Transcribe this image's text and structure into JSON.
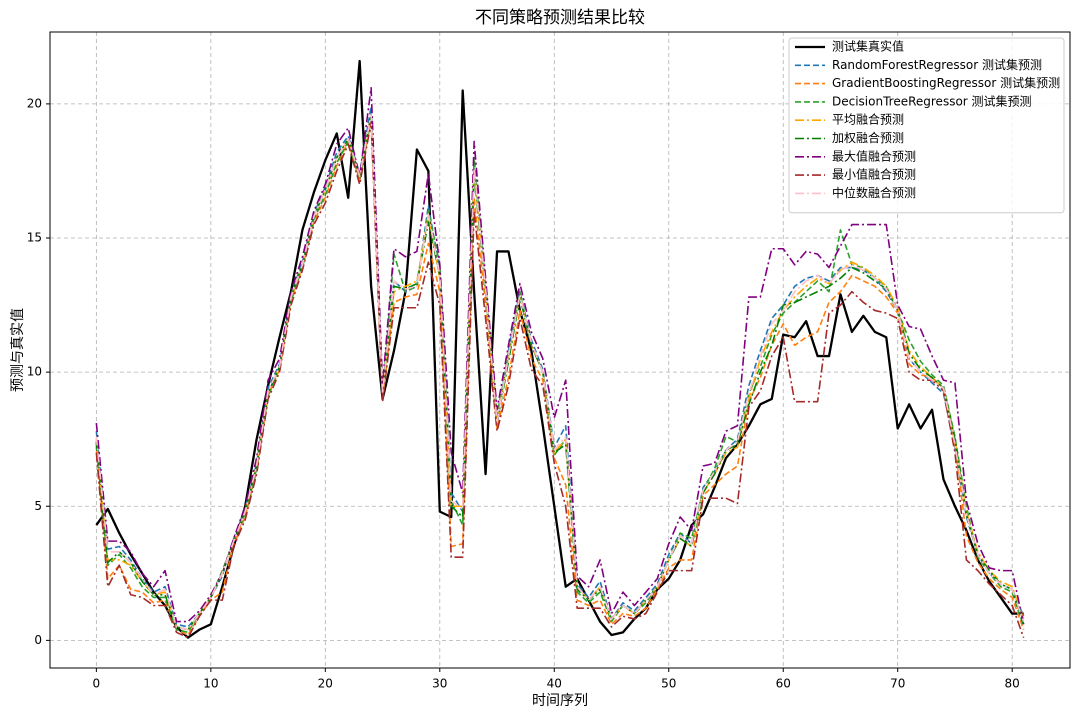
{
  "chart_data": {
    "type": "line",
    "title": "不同策略预测结果比较",
    "xlabel": "时间序列",
    "ylabel": "预测与真实值",
    "x": [
      0,
      1,
      2,
      3,
      4,
      5,
      6,
      7,
      8,
      9,
      10,
      11,
      12,
      13,
      14,
      15,
      16,
      17,
      18,
      19,
      20,
      21,
      22,
      23,
      24,
      25,
      26,
      27,
      28,
      29,
      30,
      31,
      32,
      33,
      34,
      35,
      36,
      37,
      38,
      39,
      40,
      41,
      42,
      43,
      44,
      45,
      46,
      47,
      48,
      49,
      50,
      51,
      52,
      53,
      54,
      55,
      56,
      57,
      58,
      59,
      60,
      61,
      62,
      63,
      64,
      65,
      66,
      67,
      68,
      69,
      70,
      71,
      72,
      73,
      74,
      75,
      76,
      77,
      78,
      79,
      80,
      81
    ],
    "xlim": [
      -4.05,
      85.05
    ],
    "xticks": [
      0,
      10,
      20,
      30,
      40,
      50,
      60,
      70,
      80
    ],
    "ylim": [
      -1.03,
      22.68
    ],
    "yticks": [
      0,
      5,
      10,
      15,
      20
    ],
    "grid": true,
    "legend": "upper right",
    "series": [
      {
        "name": "测试集真实值",
        "color": "#000000",
        "linestyle": "-",
        "values": [
          4.3,
          4.9,
          4.0,
          3.2,
          2.5,
          1.8,
          1.3,
          0.5,
          0.1,
          0.4,
          0.6,
          2.0,
          3.5,
          5.0,
          7.5,
          9.5,
          11.3,
          13.0,
          15.3,
          16.7,
          17.9,
          18.9,
          16.5,
          21.6,
          13.2,
          9.0,
          10.8,
          13.0,
          18.3,
          17.5,
          4.8,
          4.6,
          20.5,
          13.0,
          6.2,
          14.5,
          14.5,
          12.3,
          10.8,
          8.0,
          5.0,
          2.0,
          2.3,
          1.5,
          0.7,
          0.2,
          0.3,
          0.8,
          1.2,
          1.9,
          2.3,
          3.0,
          4.3,
          4.7,
          5.7,
          6.8,
          7.3,
          8.0,
          8.8,
          9.0,
          11.4,
          11.3,
          11.9,
          10.6,
          10.6,
          12.9,
          11.5,
          12.1,
          11.5,
          11.3,
          7.9,
          8.8,
          7.9,
          8.6,
          6.0,
          5.0,
          4.1,
          3.0,
          2.2,
          1.6,
          1.0,
          1.0
        ]
      },
      {
        "name": "RandomForestRegressor 测试集预测",
        "color": "#1f77b4",
        "linestyle": "--",
        "values": [
          7.8,
          3.4,
          3.5,
          3.0,
          2.3,
          1.8,
          2.0,
          0.6,
          0.5,
          1.0,
          1.6,
          2.4,
          3.8,
          4.9,
          6.6,
          9.4,
          10.3,
          12.9,
          14.1,
          15.9,
          16.9,
          18.2,
          18.8,
          17.4,
          19.9,
          9.3,
          13.4,
          13.0,
          13.2,
          16.2,
          13.8,
          5.5,
          4.8,
          17.8,
          13.2,
          8.0,
          10.8,
          13.0,
          11.2,
          10.1,
          7.2,
          8.0,
          2.1,
          1.6,
          2.2,
          0.8,
          1.4,
          1.1,
          1.6,
          2.1,
          3.2,
          4.0,
          3.6,
          5.7,
          6.3,
          7.1,
          7.5,
          9.5,
          10.8,
          12.0,
          12.5,
          13.2,
          13.5,
          13.6,
          13.4,
          13.9,
          13.9,
          13.8,
          13.5,
          13.0,
          12.3,
          10.5,
          10.0,
          9.6,
          9.2,
          7.2,
          4.6,
          3.2,
          2.5,
          2.1,
          1.9,
          0.9
        ]
      },
      {
        "name": "GradientBoostingRegressor 测试集预测",
        "color": "#ff7f0e",
        "linestyle": "--",
        "values": [
          7.2,
          2.3,
          2.8,
          1.9,
          1.8,
          1.4,
          1.5,
          0.4,
          0.2,
          0.9,
          1.5,
          1.8,
          3.6,
          4.6,
          6.3,
          9.1,
          10.1,
          12.6,
          13.9,
          15.6,
          16.5,
          17.7,
          18.6,
          17.1,
          19.4,
          9.0,
          12.6,
          12.8,
          12.9,
          14.8,
          13.0,
          3.5,
          3.6,
          16.5,
          12.5,
          7.9,
          9.8,
          12.3,
          10.5,
          9.7,
          6.8,
          5.8,
          1.5,
          1.3,
          1.5,
          0.6,
          1.0,
          0.9,
          1.2,
          1.9,
          2.7,
          3.0,
          3.0,
          5.4,
          5.8,
          6.2,
          6.5,
          8.9,
          9.8,
          11.0,
          11.8,
          11.0,
          11.3,
          11.5,
          12.6,
          13.0,
          13.6,
          13.4,
          13.2,
          12.8,
          12.2,
          10.3,
          9.9,
          9.8,
          9.4,
          7.3,
          3.9,
          2.9,
          2.3,
          1.9,
          1.6,
          0.4
        ]
      },
      {
        "name": "DecisionTreeRegressor 测试集预测",
        "color": "#2ca02c",
        "linestyle": "--",
        "values": [
          7.3,
          2.8,
          3.2,
          2.7,
          2.0,
          1.6,
          1.6,
          0.4,
          0.3,
          1.0,
          1.6,
          2.6,
          3.7,
          4.7,
          6.4,
          9.1,
          10.2,
          12.7,
          13.9,
          15.7,
          16.6,
          17.8,
          18.6,
          17.2,
          19.5,
          9.2,
          14.4,
          13.0,
          13.2,
          16.0,
          14.0,
          5.2,
          4.3,
          18.0,
          13.2,
          8.4,
          10.6,
          13.0,
          11.0,
          10.0,
          6.9,
          7.5,
          1.8,
          1.4,
          1.8,
          0.7,
          1.3,
          1.0,
          1.4,
          2.0,
          3.0,
          4.0,
          3.8,
          5.6,
          6.4,
          7.6,
          7.4,
          9.2,
          10.2,
          11.4,
          12.2,
          12.6,
          13.0,
          13.4,
          13.0,
          15.3,
          14.0,
          13.9,
          13.5,
          13.2,
          12.3,
          11.2,
          10.4,
          9.9,
          9.5,
          7.6,
          5.0,
          3.1,
          2.5,
          2.0,
          1.8,
          0.5
        ]
      },
      {
        "name": "平均融合预测",
        "color": "#ffa500",
        "linestyle": "-.",
        "values": [
          7.5,
          3.0,
          3.0,
          2.8,
          2.2,
          1.7,
          1.8,
          0.5,
          0.4,
          1.0,
          1.6,
          2.5,
          3.7,
          4.8,
          6.5,
          9.2,
          10.2,
          12.8,
          14.0,
          15.8,
          16.8,
          18.0,
          18.7,
          17.3,
          19.6,
          9.2,
          13.0,
          13.2,
          13.4,
          15.8,
          13.5,
          5.0,
          5.0,
          17.5,
          13.0,
          8.2,
          10.5,
          12.8,
          11.0,
          10.0,
          7.0,
          7.5,
          2.0,
          1.5,
          2.0,
          0.8,
          1.3,
          1.0,
          1.5,
          2.0,
          3.0,
          3.8,
          3.5,
          5.5,
          6.2,
          7.0,
          7.2,
          9.0,
          10.5,
          11.5,
          12.3,
          12.8,
          13.2,
          13.5,
          13.3,
          13.8,
          14.1,
          13.9,
          13.6,
          13.2,
          12.4,
          10.8,
          10.2,
          9.8,
          9.4,
          7.5,
          4.8,
          3.3,
          2.6,
          2.2,
          2.0,
          0.8
        ]
      },
      {
        "name": "加权融合预测",
        "color": "#008000",
        "linestyle": "-.",
        "values": [
          7.4,
          2.9,
          3.3,
          2.9,
          2.2,
          1.7,
          1.7,
          0.5,
          0.4,
          1.0,
          1.6,
          2.5,
          3.7,
          4.8,
          6.5,
          9.2,
          10.2,
          12.8,
          14.0,
          15.8,
          16.8,
          18.0,
          18.7,
          17.3,
          19.6,
          9.2,
          13.2,
          13.1,
          13.3,
          15.6,
          13.6,
          5.0,
          4.6,
          17.4,
          13.0,
          8.1,
          10.4,
          12.8,
          11.0,
          10.0,
          7.0,
          7.3,
          1.9,
          1.5,
          1.9,
          0.8,
          1.3,
          1.0,
          1.5,
          2.0,
          3.0,
          3.8,
          3.5,
          5.5,
          6.2,
          7.1,
          7.3,
          8.8,
          10.0,
          11.0,
          12.5,
          12.6,
          12.8,
          13.0,
          13.2,
          13.5,
          13.9,
          13.7,
          13.4,
          13.1,
          12.3,
          10.7,
          10.1,
          9.8,
          9.4,
          7.5,
          4.7,
          3.2,
          2.6,
          2.1,
          1.9,
          0.6
        ]
      },
      {
        "name": "最大值融合预测",
        "color": "#800080",
        "linestyle": "-.",
        "values": [
          8.1,
          3.7,
          3.7,
          3.3,
          2.5,
          2.0,
          2.6,
          0.7,
          0.7,
          1.1,
          1.7,
          2.5,
          3.8,
          5.0,
          6.8,
          9.7,
          10.5,
          13.0,
          14.3,
          16.0,
          17.0,
          18.5,
          19.1,
          17.3,
          20.6,
          9.5,
          14.6,
          14.3,
          14.5,
          17.4,
          14.0,
          7.0,
          5.5,
          18.6,
          13.5,
          8.6,
          11.0,
          13.3,
          11.5,
          10.5,
          8.3,
          9.7,
          2.4,
          2.0,
          3.0,
          1.0,
          1.8,
          1.3,
          1.8,
          2.3,
          3.6,
          4.6,
          4.1,
          6.5,
          6.6,
          7.8,
          8.0,
          12.8,
          12.8,
          14.6,
          14.6,
          14.0,
          14.5,
          14.4,
          13.9,
          14.7,
          15.5,
          15.5,
          15.5,
          15.5,
          12.5,
          11.7,
          11.6,
          10.6,
          9.7,
          9.6,
          5.2,
          3.6,
          2.7,
          2.6,
          2.6,
          0.6
        ]
      },
      {
        "name": "最小值融合预测",
        "color": "#a52a2a",
        "linestyle": "-.",
        "values": [
          7.0,
          2.0,
          2.8,
          1.7,
          1.6,
          1.3,
          1.3,
          0.3,
          0.1,
          0.9,
          1.5,
          1.5,
          3.5,
          4.5,
          6.2,
          9.0,
          10.0,
          12.5,
          13.8,
          15.5,
          16.3,
          17.5,
          18.5,
          17.0,
          19.3,
          8.9,
          12.4,
          12.4,
          12.4,
          14.1,
          12.5,
          3.1,
          3.1,
          16.0,
          12.0,
          7.8,
          9.5,
          12.0,
          10.1,
          9.5,
          6.6,
          5.0,
          1.2,
          1.2,
          1.2,
          0.5,
          0.9,
          0.8,
          1.0,
          1.8,
          2.6,
          2.6,
          2.6,
          5.3,
          5.3,
          5.3,
          5.1,
          8.7,
          9.3,
          10.6,
          11.3,
          8.9,
          8.9,
          8.9,
          12.2,
          12.5,
          13.0,
          12.6,
          12.3,
          12.2,
          12.0,
          10.0,
          9.7,
          9.7,
          9.3,
          7.0,
          3.0,
          2.6,
          2.1,
          1.7,
          1.3,
          0.1
        ]
      },
      {
        "name": "中位数融合预测",
        "color": "#ffc0cb",
        "linestyle": "-.",
        "values": [
          7.6,
          3.3,
          3.3,
          2.9,
          2.3,
          1.7,
          1.9,
          0.5,
          0.4,
          1.0,
          1.6,
          2.5,
          3.7,
          4.8,
          6.5,
          9.3,
          10.2,
          12.8,
          14.0,
          15.8,
          16.8,
          18.0,
          18.7,
          17.3,
          19.6,
          9.2,
          13.4,
          13.1,
          13.2,
          15.9,
          13.6,
          5.2,
          4.9,
          17.6,
          13.1,
          8.1,
          10.6,
          12.9,
          11.1,
          10.0,
          7.1,
          7.6,
          2.0,
          1.5,
          2.0,
          0.8,
          1.3,
          1.0,
          1.5,
          2.0,
          3.0,
          3.9,
          3.6,
          5.6,
          6.3,
          7.1,
          7.4,
          9.2,
          10.6,
          11.8,
          12.3,
          13.0,
          13.4,
          13.6,
          13.3,
          13.8,
          14.0,
          13.8,
          13.5,
          13.1,
          12.3,
          10.5,
          10.0,
          9.7,
          9.4,
          7.3,
          4.7,
          3.2,
          2.5,
          2.1,
          1.9,
          0.7
        ]
      }
    ]
  }
}
